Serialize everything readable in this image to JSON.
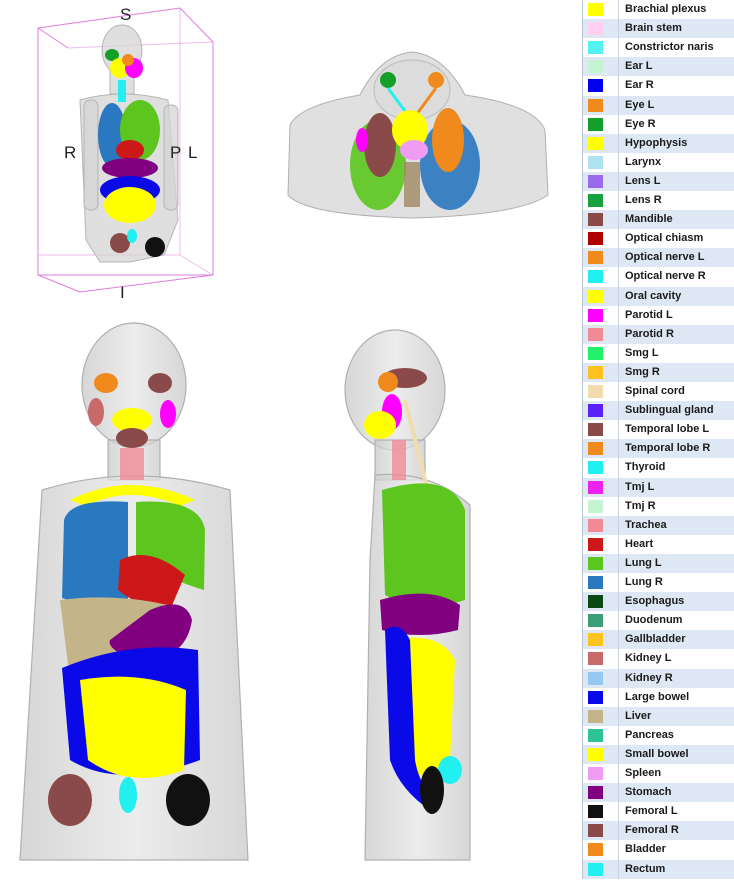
{
  "orientation": {
    "superior": "S",
    "inferior": "I",
    "right": "R",
    "left": "L",
    "posterior": "P"
  },
  "legend": [
    {
      "label": "Brachial plexus",
      "color": "#ffff00"
    },
    {
      "label": "Brain stem",
      "color": "#ffd0ef"
    },
    {
      "label": "Constrictor naris",
      "color": "#55f2f2"
    },
    {
      "label": "Ear L",
      "color": "#c4f4d2"
    },
    {
      "label": "Ear R",
      "color": "#0000ee"
    },
    {
      "label": "Eye L",
      "color": "#f08a1c"
    },
    {
      "label": "Eye R",
      "color": "#14a028"
    },
    {
      "label": "Hypophysis",
      "color": "#ffff00"
    },
    {
      "label": "Larynx",
      "color": "#aee2ee"
    },
    {
      "label": "Lens L",
      "color": "#9a6aec"
    },
    {
      "label": "Lens R",
      "color": "#16a03e"
    },
    {
      "label": "Mandible",
      "color": "#8b4a4a"
    },
    {
      "label": "Optical chiasm",
      "color": "#b00000"
    },
    {
      "label": "Optical nerve L",
      "color": "#f08a1c"
    },
    {
      "label": "Optical nerve R",
      "color": "#22f0f0"
    },
    {
      "label": "Oral cavity",
      "color": "#ffff00"
    },
    {
      "label": "Parotid L",
      "color": "#ff00ff"
    },
    {
      "label": "Parotid R",
      "color": "#f08a96"
    },
    {
      "label": "Smg L",
      "color": "#22f06a"
    },
    {
      "label": "Smg R",
      "color": "#fdc21e"
    },
    {
      "label": "Spinal cord",
      "color": "#f2dcae"
    },
    {
      "label": "Sublingual gland",
      "color": "#5a22f8"
    },
    {
      "label": "Temporal lobe L",
      "color": "#8b4a4a"
    },
    {
      "label": "Temporal lobe R",
      "color": "#f08a1c"
    },
    {
      "label": "Thyroid",
      "color": "#22f0f0"
    },
    {
      "label": "Tmj L",
      "color": "#ee22ee"
    },
    {
      "label": "Tmj R",
      "color": "#c4f4d2"
    },
    {
      "label": "Trachea",
      "color": "#f08a96"
    },
    {
      "label": "Heart",
      "color": "#cc1818"
    },
    {
      "label": "Lung L",
      "color": "#5cc61e"
    },
    {
      "label": "Lung R",
      "color": "#2a78c0"
    },
    {
      "label": "Esophagus",
      "color": "#0c4a14"
    },
    {
      "label": "Duodenum",
      "color": "#3c9e78"
    },
    {
      "label": "Gallbladder",
      "color": "#fdc21e"
    },
    {
      "label": "Kidney L",
      "color": "#c86a6a"
    },
    {
      "label": "Kidney R",
      "color": "#96c8f4"
    },
    {
      "label": "Large bowel",
      "color": "#0a0ae8"
    },
    {
      "label": "Liver",
      "color": "#c4b48a"
    },
    {
      "label": "Pancreas",
      "color": "#2cc496"
    },
    {
      "label": "Small bowel",
      "color": "#ffff00"
    },
    {
      "label": "Spleen",
      "color": "#f09cf2"
    },
    {
      "label": "Stomach",
      "color": "#800080"
    },
    {
      "label": "Femoral L",
      "color": "#111111"
    },
    {
      "label": "Femoral R",
      "color": "#8b4a4a"
    },
    {
      "label": "Bladder",
      "color": "#f08a1c"
    },
    {
      "label": "Rectum",
      "color": "#22f0f0"
    }
  ]
}
